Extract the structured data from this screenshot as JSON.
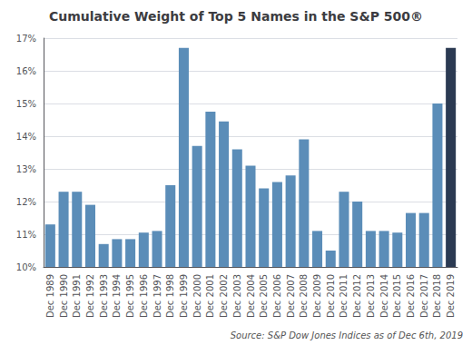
{
  "chart_data": {
    "type": "bar",
    "title": "Cumulative Weight of Top 5 Names in the S&P 500®",
    "annotations": [
      "Source: S&P Dow Jones Indices as of Dec 6th, 2019"
    ],
    "categories": [
      "Dec 1989",
      "Dec 1990",
      "Dec 1991",
      "Dec 1992",
      "Dec 1993",
      "Dec 1994",
      "Dec 1995",
      "Dec 1996",
      "Dec 1997",
      "Dec 1998",
      "Dec 1999",
      "Dec 2000",
      "Dec 2001",
      "Dec 2002",
      "Dec 2003",
      "Dec 2004",
      "Dec 2005",
      "Dec 2006",
      "Dec 2007",
      "Dec 2008",
      "Dec 2009",
      "Dec 2010",
      "Dec 2011",
      "Dec 2012",
      "Dec 2013",
      "Dec 2014",
      "Dec 2015",
      "Dec 2016",
      "Dec 2017",
      "Dec 2018",
      "Dec 2019"
    ],
    "values": [
      11.3,
      12.3,
      12.3,
      11.9,
      10.7,
      10.85,
      10.85,
      11.05,
      11.1,
      12.5,
      16.7,
      13.7,
      14.75,
      14.45,
      13.6,
      13.1,
      12.4,
      12.6,
      12.8,
      13.9,
      11.1,
      10.5,
      12.3,
      12.0,
      11.1,
      11.1,
      11.05,
      11.65,
      11.65,
      15.0,
      16.7
    ],
    "colors": [
      "#5B8DB8",
      "#5B8DB8",
      "#5B8DB8",
      "#5B8DB8",
      "#5B8DB8",
      "#5B8DB8",
      "#5B8DB8",
      "#5B8DB8",
      "#5B8DB8",
      "#5B8DB8",
      "#5B8DB8",
      "#5B8DB8",
      "#5B8DB8",
      "#5B8DB8",
      "#5B8DB8",
      "#5B8DB8",
      "#5B8DB8",
      "#5B8DB8",
      "#5B8DB8",
      "#5B8DB8",
      "#5B8DB8",
      "#5B8DB8",
      "#5B8DB8",
      "#5B8DB8",
      "#5B8DB8",
      "#5B8DB8",
      "#5B8DB8",
      "#5B8DB8",
      "#5B8DB8",
      "#5B8DB8",
      "#2B3A52"
    ],
    "ylim": [
      10.0,
      17.0
    ],
    "yticks": [
      {
        "value": 10,
        "label": "10%"
      },
      {
        "value": 11,
        "label": "11%"
      },
      {
        "value": 12,
        "label": "12%"
      },
      {
        "value": 13,
        "label": "13%"
      },
      {
        "value": 14,
        "label": "14%"
      },
      {
        "value": 15,
        "label": "15%"
      },
      {
        "value": 16,
        "label": "16%"
      },
      {
        "value": 17,
        "label": "17%"
      }
    ],
    "grid": true
  }
}
